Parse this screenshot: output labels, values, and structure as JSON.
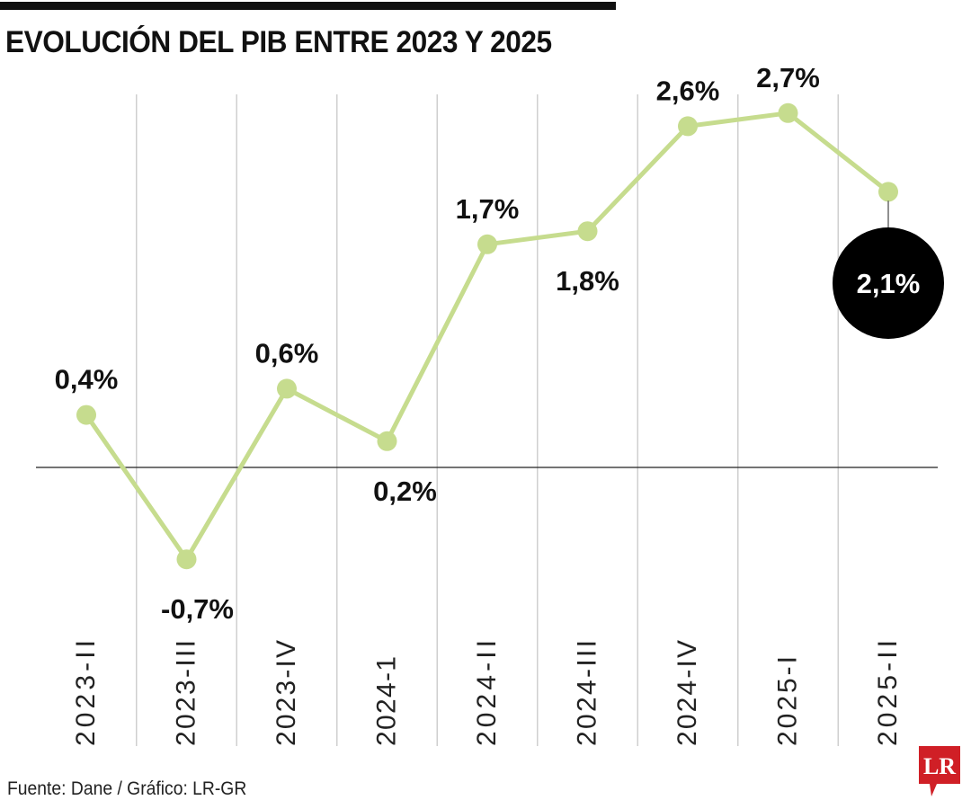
{
  "chart_data": {
    "type": "line",
    "title": "EVOLUCIÓN DEL PIB ENTRE 2023 Y 2025",
    "categories": [
      "2023-II",
      "2023-III",
      "2023-IV",
      "2024-1",
      "2024-II",
      "2024-III",
      "2024-IV",
      "2025-I",
      "2025-II"
    ],
    "values": [
      0.4,
      -0.7,
      0.6,
      0.2,
      1.7,
      1.8,
      2.6,
      2.7,
      2.1
    ],
    "data_labels": [
      "0,4%",
      "-0,7%",
      "0,6%",
      "0,2%",
      "1,7%",
      "1,8%",
      "2,6%",
      "2,7%",
      "2,1%"
    ],
    "highlighted": "2025-II",
    "xlabel": "",
    "ylabel": "",
    "ylim": [
      -1.4,
      2.85
    ],
    "grid": "vertical",
    "colors": {
      "line": "#c6dc8e",
      "highlight": "#000000",
      "logo": "#d01f26"
    }
  },
  "source": "Fuente: Dane / Gráfico: LR-GR",
  "logo_text": "LR"
}
